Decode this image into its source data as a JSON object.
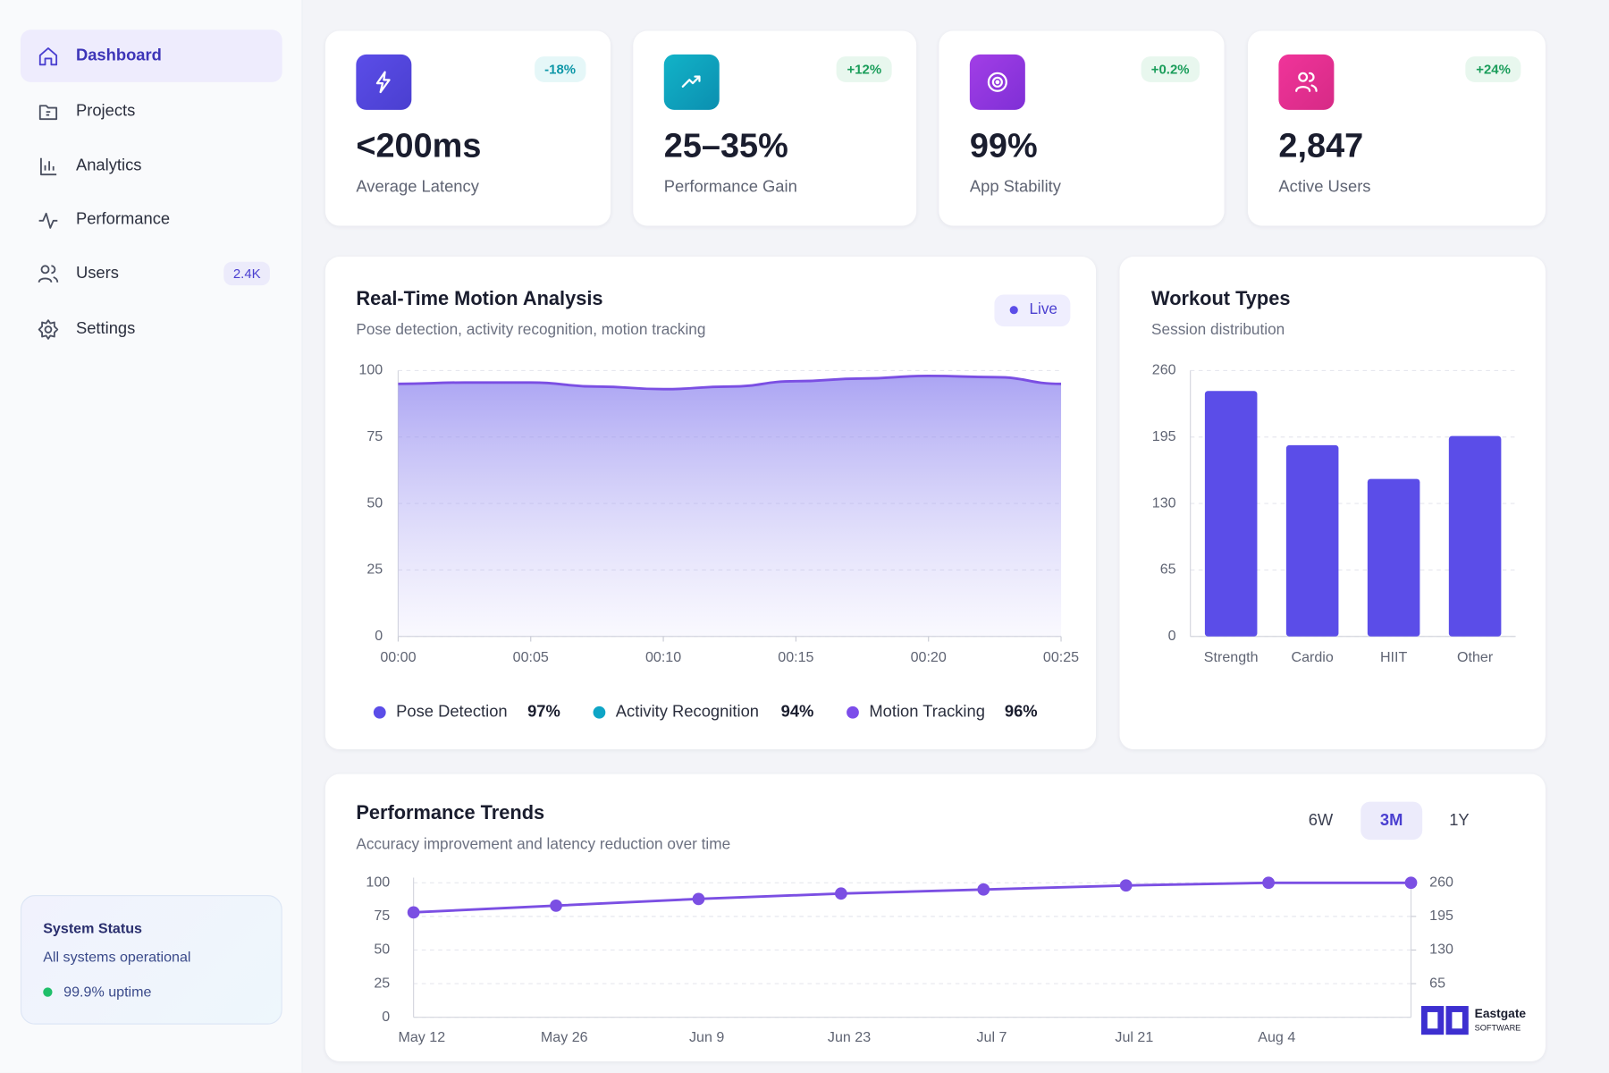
{
  "sidebar": {
    "nav": [
      {
        "label": "Dashboard"
      },
      {
        "label": "Projects"
      },
      {
        "label": "Analytics"
      },
      {
        "label": "Performance"
      },
      {
        "label": "Users",
        "badge": "2.4K"
      },
      {
        "label": "Settings"
      }
    ],
    "status": {
      "title": "System Status",
      "text": "All systems operational",
      "uptime": "99.9% uptime"
    }
  },
  "stats": [
    {
      "value": "<200ms",
      "label": "Average Latency",
      "change": "-18%"
    },
    {
      "value": "25–35%",
      "label": "Performance Gain",
      "change": "+12%"
    },
    {
      "value": "99%",
      "label": "App Stability",
      "change": "+0.2%"
    },
    {
      "value": "2,847",
      "label": "Active Users",
      "change": "+24%"
    }
  ],
  "chart_data": [
    {
      "type": "area",
      "title": "Real-Time Motion Analysis",
      "subtitle": "Pose detection, activity recognition, motion tracking",
      "badge": "Live",
      "categories": [
        "00:00",
        null,
        "00:05",
        null,
        "00:10",
        null,
        "00:15",
        null,
        "00:20",
        null,
        "00:25"
      ],
      "values": [
        95,
        95.5,
        95.5,
        94,
        93,
        94,
        96,
        97,
        98,
        97.5,
        95
      ],
      "color": "#7b4fe3",
      "ylim": [
        0,
        100
      ],
      "yticks": [
        0,
        25,
        50,
        75,
        100
      ],
      "grid": true,
      "legend": [
        {
          "name": "Pose Detection",
          "color": "#5b4de8",
          "value": "97%"
        },
        {
          "name": "Activity Recognition",
          "color": "#0ea5c6",
          "value": "94%"
        },
        {
          "name": "Motion Tracking",
          "color": "#7c4dea",
          "value": "96%"
        }
      ]
    },
    {
      "type": "bar",
      "title": "Workout Types",
      "subtitle": "Session distribution",
      "categories": [
        "Strength",
        "Cardio",
        "HIIT",
        "Other"
      ],
      "values": [
        240,
        187,
        154,
        196
      ],
      "color": "#5b4de8",
      "ylim": [
        0,
        260
      ],
      "yticks": [
        0,
        65,
        130,
        195,
        260
      ],
      "grid": true
    },
    {
      "type": "line",
      "title": "Performance Trends",
      "subtitle": "Accuracy improvement and latency reduction over time",
      "tabs": [
        "6W",
        "3M",
        "1Y"
      ],
      "active_tab": "3M",
      "categories": [
        "May 12",
        "May 26",
        "Jun 9",
        "Jun 23",
        "Jul 7",
        "Jul 21",
        "Aug 4",
        null
      ],
      "values": [
        78,
        83,
        88,
        92,
        95,
        98,
        100,
        100
      ],
      "color": "#7b4fe3",
      "ylim": [
        0,
        100
      ],
      "yticks": [
        0,
        25,
        50,
        75,
        100
      ],
      "y2lim": [
        0,
        260
      ],
      "y2ticks": [
        65,
        130,
        195,
        260
      ],
      "grid": true
    }
  ],
  "logo": {
    "name": "Eastgate",
    "tagline": "SOFTWARE"
  }
}
